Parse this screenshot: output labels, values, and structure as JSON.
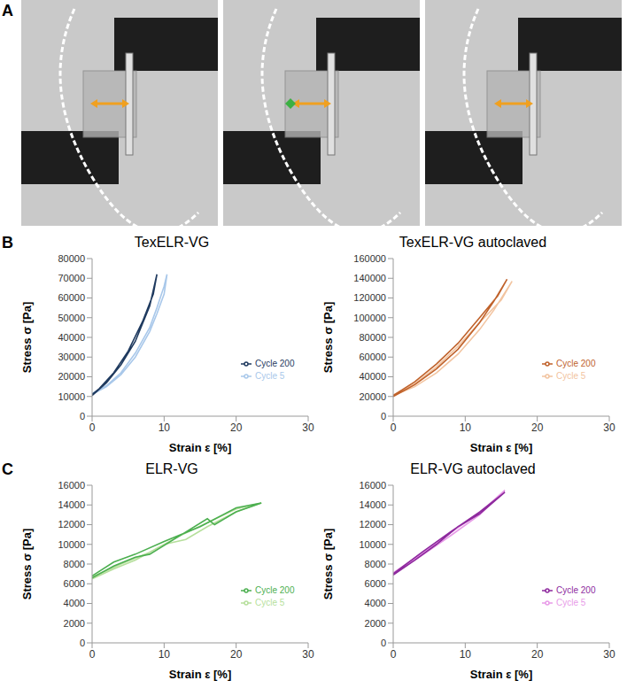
{
  "image_panel": {
    "label": "A"
  },
  "chart_data": [
    {
      "panel": "B",
      "type": "line",
      "title": "TexELR-VG",
      "x_label": "Strain ε [%]",
      "y_label": "Stress σ [Pa]",
      "xlim": [
        0,
        30
      ],
      "xticks": [
        0,
        10,
        20,
        30
      ],
      "ylim": [
        0,
        80000
      ],
      "yticks": [
        0,
        10000,
        20000,
        30000,
        40000,
        50000,
        60000,
        70000,
        80000
      ],
      "grid": false,
      "legend": "right",
      "series": [
        {
          "name": "Cycle 5",
          "color": "#a9c8ea",
          "x": [
            0,
            2,
            4,
            6,
            8,
            9,
            10,
            10.4,
            10,
            9,
            8,
            6,
            4,
            2,
            0
          ],
          "values": [
            11000,
            15000,
            21000,
            30000,
            43000,
            52000,
            62000,
            72000,
            66000,
            55000,
            45000,
            32000,
            22000,
            15500,
            11500
          ]
        },
        {
          "name": "Cycle 200",
          "color": "#1f3a5f",
          "x": [
            0,
            2,
            4,
            6,
            8,
            9,
            8.5,
            7,
            5,
            3,
            1,
            0
          ],
          "values": [
            10500,
            17000,
            26000,
            38000,
            56000,
            72000,
            62000,
            48000,
            33000,
            22000,
            14000,
            11000
          ]
        }
      ]
    },
    {
      "panel": "B",
      "type": "line",
      "title": "TexELR-VG autoclaved",
      "x_label": "Strain ε [%]",
      "y_label": "Stress σ [Pa]",
      "xlim": [
        0,
        30
      ],
      "xticks": [
        0,
        10,
        20,
        30
      ],
      "ylim": [
        0,
        160000
      ],
      "yticks": [
        0,
        20000,
        40000,
        60000,
        80000,
        100000,
        120000,
        140000,
        160000
      ],
      "grid": false,
      "legend": "right",
      "series": [
        {
          "name": "Cycle 5",
          "color": "#f2c4a0",
          "x": [
            0,
            3,
            6,
            9,
            12,
            14,
            16.5,
            15,
            12,
            9,
            6,
            3,
            0
          ],
          "values": [
            21000,
            30000,
            44000,
            63000,
            88000,
            108000,
            137000,
            118000,
            95000,
            71000,
            50000,
            33000,
            21500
          ]
        },
        {
          "name": "Cycle 200",
          "color": "#c0622b",
          "x": [
            0,
            3,
            6,
            9,
            12,
            14,
            15.8,
            14.5,
            12,
            9,
            6,
            3,
            0
          ],
          "values": [
            20000,
            32000,
            48000,
            68000,
            95000,
            117000,
            139000,
            122000,
            100000,
            74000,
            53000,
            35000,
            21000
          ]
        }
      ]
    },
    {
      "panel": "C",
      "type": "line",
      "title": "ELR-VG",
      "x_label": "Strain ε [%]",
      "y_label": "Stress σ [Pa]",
      "xlim": [
        0,
        30
      ],
      "xticks": [
        0,
        10,
        20,
        30
      ],
      "ylim": [
        0,
        16000
      ],
      "yticks": [
        0,
        2000,
        4000,
        6000,
        8000,
        10000,
        12000,
        14000,
        16000
      ],
      "grid": false,
      "legend": "right",
      "series": [
        {
          "name": "Cycle 5",
          "color": "#b6df9c",
          "x": [
            0,
            3,
            6,
            10,
            13,
            16,
            20,
            23.5,
            20,
            16,
            12,
            8,
            4,
            0
          ],
          "values": [
            6500,
            7500,
            8400,
            10000,
            10500,
            11800,
            13300,
            14200,
            13600,
            12200,
            10800,
            9200,
            8000,
            6700
          ]
        },
        {
          "name": "Cycle 200",
          "color": "#4caf50",
          "x": [
            0,
            3,
            6,
            8,
            12,
            16,
            17,
            20,
            23.5,
            20,
            15,
            10,
            6,
            3,
            0
          ],
          "values": [
            6600,
            7800,
            8700,
            9000,
            10800,
            12600,
            12000,
            13300,
            14200,
            13700,
            11800,
            10300,
            9000,
            8200,
            6800
          ]
        }
      ]
    },
    {
      "panel": "C",
      "type": "line",
      "title": "ELR-VG autoclaved",
      "x_label": "Strain ε [%]",
      "y_label": "Stress σ [Pa]",
      "xlim": [
        0,
        30
      ],
      "xticks": [
        0,
        10,
        20,
        30
      ],
      "ylim": [
        0,
        16000
      ],
      "yticks": [
        0,
        2000,
        4000,
        6000,
        8000,
        10000,
        12000,
        14000,
        16000
      ],
      "grid": false,
      "legend": "right",
      "series": [
        {
          "name": "Cycle 5",
          "color": "#e89be8",
          "x": [
            0,
            4,
            8,
            12,
            15.5,
            12,
            8,
            4,
            0
          ],
          "values": [
            7000,
            8900,
            10900,
            13000,
            15500,
            13200,
            11200,
            9100,
            7100
          ]
        },
        {
          "name": "Cycle 200",
          "color": "#8e2a9e",
          "x": [
            0,
            3,
            6,
            9,
            12,
            15.5,
            12,
            8,
            4,
            0
          ],
          "values": [
            6900,
            8400,
            10000,
            11800,
            13100,
            15300,
            13300,
            11300,
            9200,
            7000
          ]
        }
      ]
    }
  ]
}
